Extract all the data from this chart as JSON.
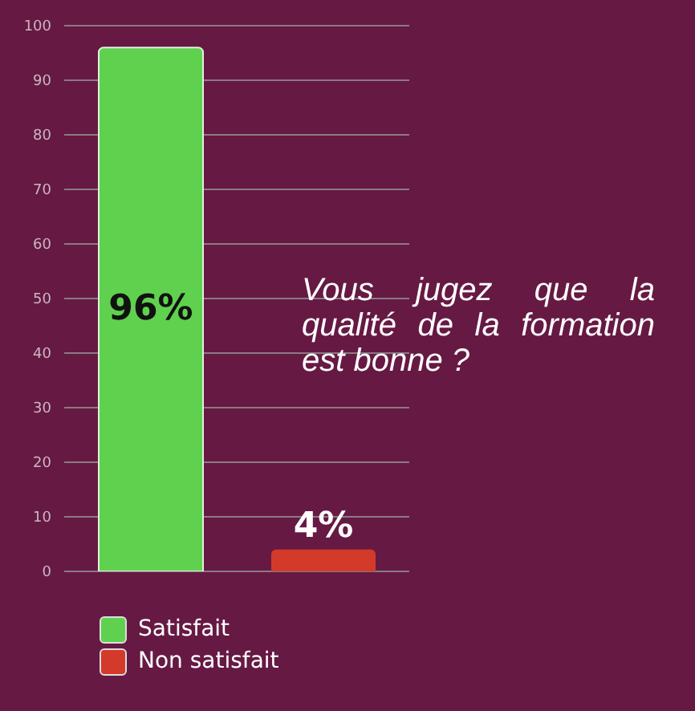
{
  "chart_data": {
    "type": "bar",
    "categories": [
      null,
      null
    ],
    "series": [
      {
        "name": "Satisfait",
        "color": "#5fd14f",
        "values": [
          96,
          null
        ],
        "value_labels": [
          "96%",
          null
        ]
      },
      {
        "name": "Non satisfait",
        "color": "#d33a2a",
        "values": [
          null,
          4
        ],
        "value_labels": [
          null,
          "4%"
        ]
      }
    ],
    "ylim": [
      0,
      100
    ],
    "yticks": [
      0,
      10,
      20,
      30,
      40,
      50,
      60,
      70,
      80,
      90,
      100
    ],
    "grid": "y",
    "legend": "bottom left",
    "tick_labels": "y",
    "annotations": [
      "Vous jugez que la qualité de la formation est bonne ?"
    ]
  }
}
